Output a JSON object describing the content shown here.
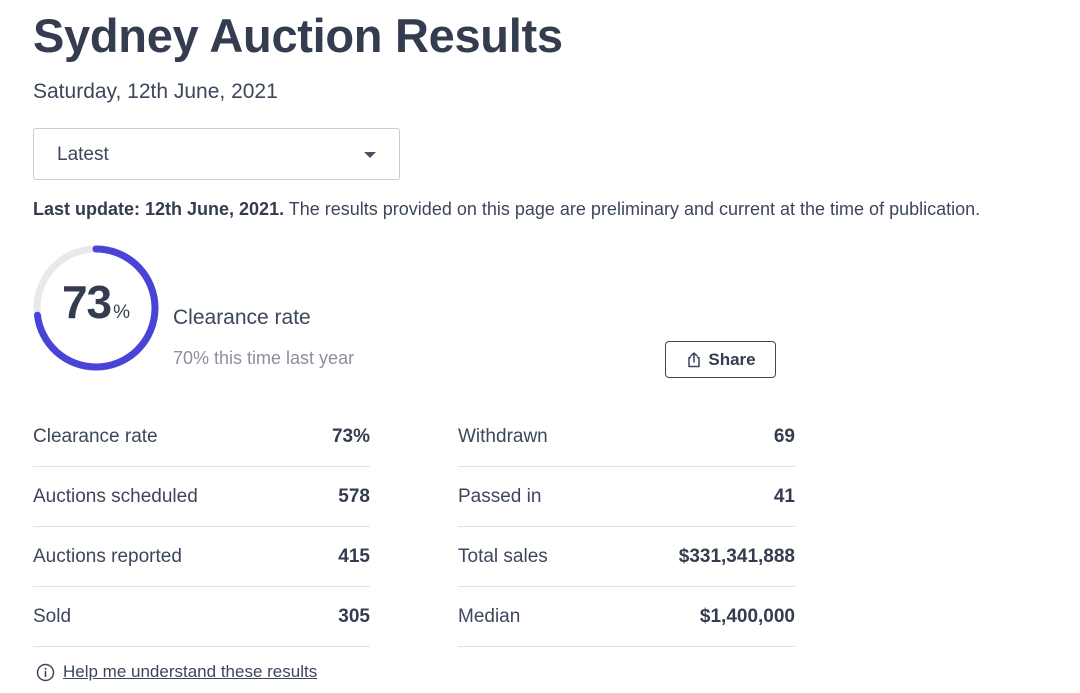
{
  "header": {
    "title": "Sydney Auction Results",
    "date": "Saturday, 12th June, 2021"
  },
  "filter": {
    "selected": "Latest"
  },
  "update": {
    "label": "Last update: 12th June, 2021.",
    "text": " The results provided on this page are preliminary and current at the time of publication."
  },
  "summary": {
    "clearance_value": "73",
    "clearance_fraction": 0.73,
    "percent_sign": "%",
    "label": "Clearance rate",
    "comparison": "70% this time last year",
    "share_label": "Share"
  },
  "colors": {
    "accent": "#4a44d6",
    "ring_track": "#e8e9ed"
  },
  "stats_left": [
    {
      "label": "Clearance rate",
      "value": "73%"
    },
    {
      "label": "Auctions scheduled",
      "value": "578"
    },
    {
      "label": "Auctions reported",
      "value": "415"
    },
    {
      "label": "Sold",
      "value": "305"
    }
  ],
  "stats_right": [
    {
      "label": "Withdrawn",
      "value": "69"
    },
    {
      "label": "Passed in",
      "value": "41"
    },
    {
      "label": "Total sales",
      "value": "$331,341,888"
    },
    {
      "label": "Median",
      "value": "$1,400,000"
    }
  ],
  "help": {
    "link": "Help me understand these results"
  }
}
